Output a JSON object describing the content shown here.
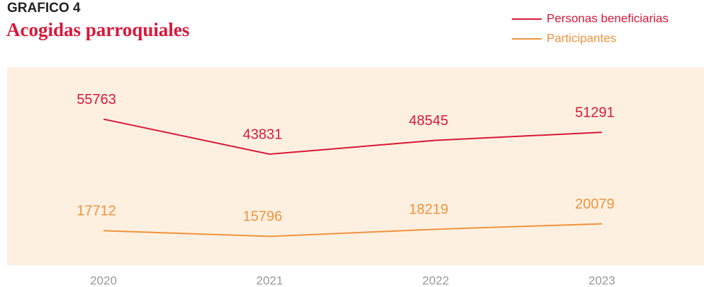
{
  "chart_data": {
    "type": "line",
    "supertitle": "GRAFICO 4",
    "title": "Acogidas parroquiales",
    "categories": [
      "2020",
      "2021",
      "2022",
      "2023"
    ],
    "series": [
      {
        "name": "Personas beneficiarias",
        "color": "#d7193b",
        "values": [
          55763,
          43831,
          48545,
          51291
        ]
      },
      {
        "name": "Participantes",
        "color": "#f0933d",
        "values": [
          17712,
          15796,
          18219,
          20079
        ]
      }
    ],
    "ylim": [
      6000,
      73500
    ],
    "legend": "top-right",
    "background": "#fdf0e0"
  }
}
